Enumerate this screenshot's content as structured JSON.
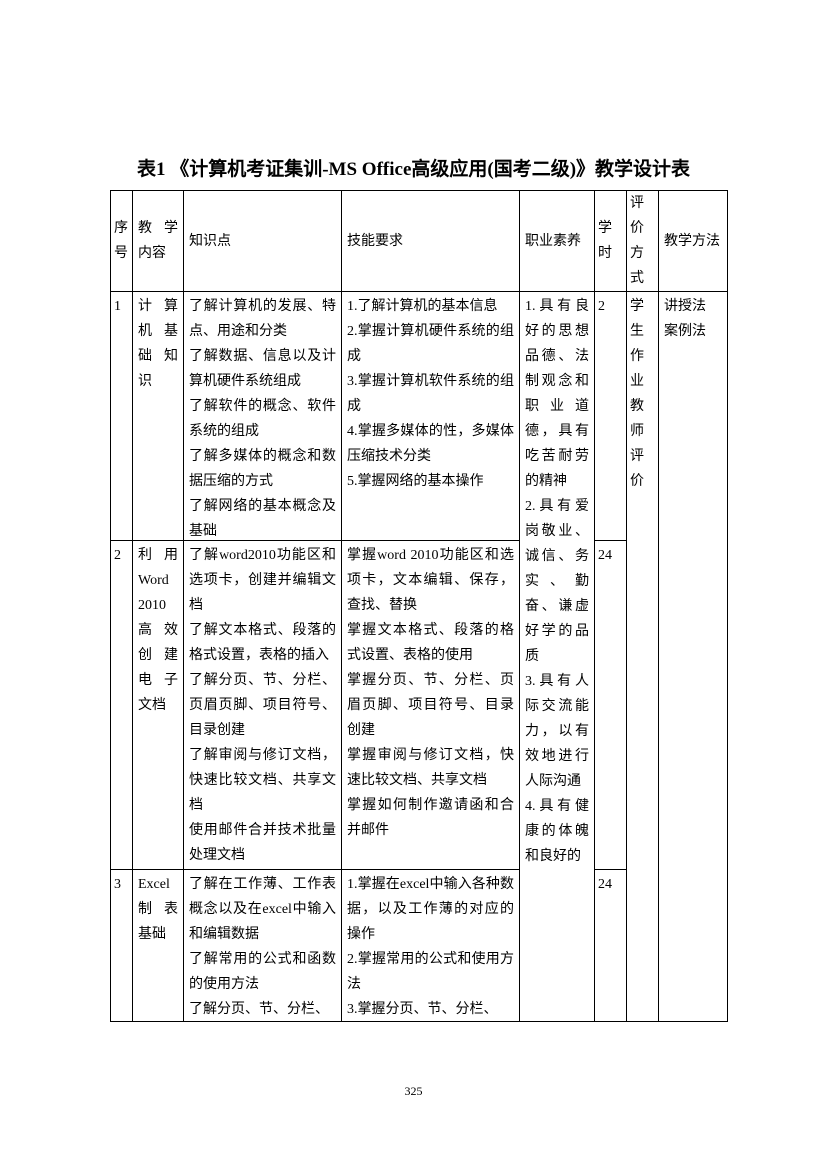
{
  "title": "表1 《计算机考证集训-MS Office高级应用(国考二级)》教学设计表",
  "table": {
    "header": [
      "序号",
      "教学内容",
      "知识点",
      "技能要求",
      "职业素养",
      "学时",
      "评价方式",
      "教学方法"
    ],
    "rows": [
      {
        "no": "1",
        "content": "计算机基础知识",
        "knowledge": [
          "了解计算机的发展、特点、用途和分类",
          "了解数据、信息以及计算机硬件系统组成",
          "了解软件的概念、软件系统的组成",
          "了解多媒体的概念和数据压缩的方式",
          "了解网络的基本概念及基础"
        ],
        "skills": [
          "1.了解计算机的基本信息",
          "2.掌握计算机硬件系统的组成",
          "3.掌握计算机软件系统的组成",
          "4.掌握多媒体的性，多媒体压缩技术分类",
          "5.掌握网络的基本操作"
        ],
        "hours": "2"
      },
      {
        "no": "2",
        "content": "利用Word 2010高效创建电子文档",
        "knowledge": [
          "了解word2010功能区和选项卡，创建并编辑文档",
          "了解文本格式、段落的格式设置，表格的插入",
          "了解分页、节、分栏、页眉页脚、项目符号、目录创建",
          "了解审阅与修订文档，快速比较文档、共享文档",
          "使用邮件合并技术批量处理文档"
        ],
        "skills": [
          "掌握word 2010功能区和选项卡，文本编辑、保存，查找、替换",
          "掌握文本格式、段落的格式设置、表格的使用",
          "掌握分页、节、分栏、页眉页脚、项目符号、目录创建",
          "掌握审阅与修订文档，快速比较文档、共享文档",
          "掌握如何制作邀请函和合并邮件"
        ],
        "hours": "24"
      },
      {
        "no": "3",
        "content": "Excel制表基础",
        "knowledge": [
          "了解在工作薄、工作表概念以及在excel中输入和编辑数据",
          "了解常用的公式和函数的使用方法",
          "了解分页、节、分栏、"
        ],
        "skills": [
          "1.掌握在excel中输入各种数据，以及工作薄的对应的操作",
          "2.掌握常用的公式和使用方法",
          "3.掌握分页、节、分栏、"
        ],
        "hours": "24"
      }
    ],
    "quality": [
      "1.具有良好的思想品德、法制观念和职业道德，具有吃苦耐劳的精神",
      "2.具有爱岗敬业、诚信、务实、勤奋、谦虚好学的品质",
      "3.具有人际交流能力，以有效地进行人际沟通",
      "4.具有健康的体魄和良好的"
    ],
    "evaluation": "学生作业教师评价",
    "methods": [
      "讲授法",
      "案例法"
    ]
  },
  "page_number": "325"
}
